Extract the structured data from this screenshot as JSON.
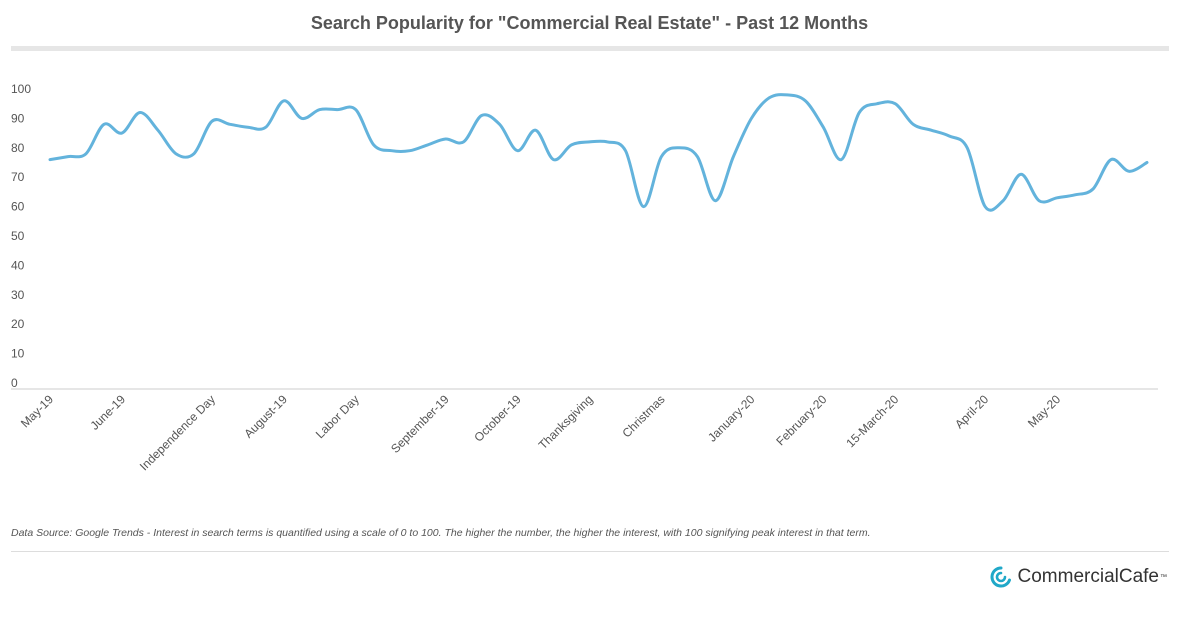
{
  "chart_data": {
    "type": "line",
    "title": "Search Popularity for \"Commercial Real Estate\" - Past 12 Months",
    "ylim": [
      0,
      100
    ],
    "yticks": [
      "0",
      "10",
      "20",
      "30",
      "40",
      "50",
      "60",
      "70",
      "80",
      "90",
      "100"
    ],
    "xtick_labels": [
      {
        "label": "May-19",
        "index": 0
      },
      {
        "label": "June-19",
        "index": 4
      },
      {
        "label": "Independence Day",
        "index": 9
      },
      {
        "label": "August-19",
        "index": 13
      },
      {
        "label": "Labor Day",
        "index": 17
      },
      {
        "label": "September-19",
        "index": 22
      },
      {
        "label": "October-19",
        "index": 26
      },
      {
        "label": "Thanksgiving",
        "index": 30
      },
      {
        "label": "Christmas",
        "index": 34
      },
      {
        "label": "January-20",
        "index": 39
      },
      {
        "label": "February-20",
        "index": 43
      },
      {
        "label": "15-March-20",
        "index": 47
      },
      {
        "label": "April-20",
        "index": 52
      },
      {
        "label": "May-20",
        "index": 56
      }
    ],
    "series": [
      {
        "values": [
          76,
          77,
          78,
          88,
          85,
          92,
          86,
          78,
          78,
          89,
          88,
          87,
          87,
          96,
          90,
          93,
          93,
          93,
          81,
          79,
          79,
          81,
          83,
          82,
          91,
          88,
          79,
          86,
          76,
          81,
          82,
          82,
          79,
          60,
          77,
          80,
          77,
          62,
          77,
          90,
          97,
          98,
          96,
          87,
          76,
          92,
          95,
          95,
          88,
          86,
          84,
          80,
          60,
          62,
          71,
          62,
          63,
          64,
          66,
          76,
          72,
          75
        ],
        "color": "#63b3dc"
      }
    ],
    "grid": false
  },
  "source_note": "Data Source: Google Trends - Interest in search terms is quantified using a scale of 0 to 100. The higher the number, the higher the interest, with 100 signifying peak interest in that term.",
  "brand": {
    "name": "CommercialCafe",
    "trademark": "™",
    "icon": "commercialcafe-logo-icon",
    "color": "#20a8c8"
  }
}
